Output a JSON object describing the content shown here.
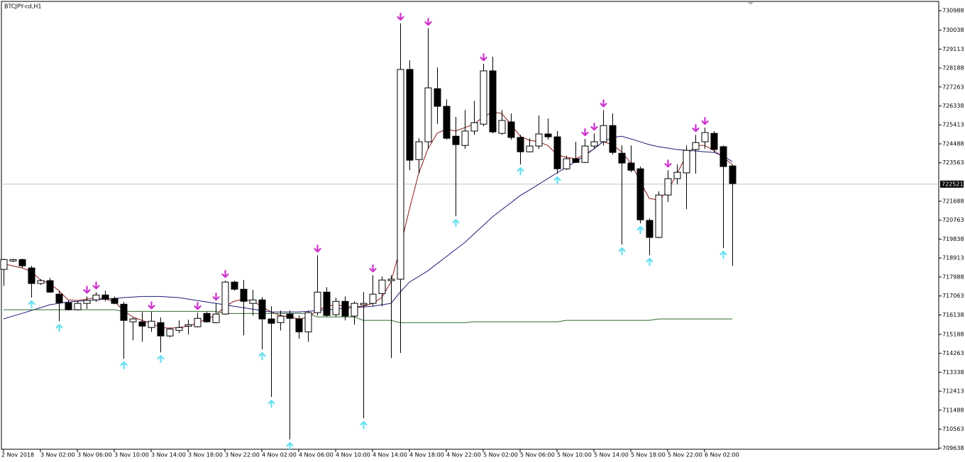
{
  "chart_data": {
    "type": "candlestick",
    "title": "BTCJPY-cd,H1",
    "categories": [
      "2 Nov 2018",
      null,
      null,
      null,
      "3 Nov 02:00",
      null,
      null,
      null,
      "3 Nov 06:00",
      null,
      null,
      null,
      "3 Nov 10:00",
      null,
      null,
      null,
      "3 Nov 14:00",
      null,
      null,
      null,
      "3 Nov 18:00",
      null,
      null,
      null,
      "3 Nov 22:00",
      null,
      null,
      null,
      "4 Nov 02:00",
      null,
      null,
      null,
      "4 Nov 06:00",
      null,
      null,
      null,
      "4 Nov 10:00",
      null,
      null,
      null,
      "4 Nov 14:00",
      null,
      null,
      null,
      "4 Nov 18:00",
      null,
      null,
      null,
      "4 Nov 22:00",
      null,
      null,
      null,
      "5 Nov 02:00",
      null,
      null,
      null,
      "5 Nov 06:00",
      null,
      null,
      null,
      "5 Nov 10:00",
      null,
      null,
      null,
      "5 Nov 14:00",
      null,
      null,
      null,
      "5 Nov 18:00",
      null,
      null,
      null,
      "5 Nov 22:00",
      null,
      null,
      null,
      "6 Nov 02:00",
      null,
      null,
      null
    ],
    "candles": [
      [
        718360,
        718880,
        717560,
        718840
      ],
      [
        718770,
        718880,
        718710,
        718840
      ],
      [
        718840,
        718880,
        718430,
        718530
      ],
      [
        718430,
        718530,
        716980,
        717670
      ],
      [
        717670,
        717880,
        717600,
        717810
      ],
      [
        717810,
        717940,
        717220,
        717250
      ],
      [
        717150,
        717320,
        715830,
        716730
      ],
      [
        716730,
        716840,
        716350,
        716390
      ],
      [
        716390,
        716800,
        716350,
        716700
      ],
      [
        716700,
        717040,
        716420,
        716840
      ],
      [
        716870,
        717250,
        716770,
        717110
      ],
      [
        717110,
        717320,
        716800,
        716910
      ],
      [
        716940,
        717040,
        716660,
        716700
      ],
      [
        716660,
        716770,
        714000,
        715870
      ],
      [
        715800,
        716010,
        714900,
        715940
      ],
      [
        715800,
        716280,
        714830,
        715590
      ],
      [
        715520,
        716280,
        715310,
        715830
      ],
      [
        715760,
        716010,
        714310,
        715110
      ],
      [
        715110,
        715520,
        715040,
        715450
      ],
      [
        715380,
        715870,
        715250,
        715520
      ],
      [
        715590,
        715900,
        715180,
        715660
      ],
      [
        715560,
        716250,
        715520,
        715970
      ],
      [
        716210,
        716280,
        715760,
        715800
      ],
      [
        715760,
        716700,
        715730,
        716180
      ],
      [
        716180,
        717810,
        716150,
        717740
      ],
      [
        717740,
        717810,
        717320,
        717390
      ],
      [
        717390,
        717840,
        715140,
        716800
      ],
      [
        716700,
        717360,
        716110,
        716870
      ],
      [
        716870,
        717010,
        714450,
        715940
      ],
      [
        715940,
        716560,
        712130,
        715730
      ],
      [
        715760,
        716350,
        715380,
        716080
      ],
      [
        716180,
        716350,
        710060,
        715970
      ],
      [
        715940,
        716110,
        714970,
        715310
      ],
      [
        715310,
        716350,
        714830,
        716250
      ],
      [
        716250,
        719050,
        716110,
        717250
      ],
      [
        717250,
        717490,
        716040,
        716110
      ],
      [
        716150,
        716980,
        716040,
        716800
      ],
      [
        716800,
        717040,
        715870,
        716080
      ],
      [
        716080,
        716800,
        715660,
        716700
      ],
      [
        716630,
        717250,
        711090,
        716700
      ],
      [
        716700,
        718080,
        716560,
        717150
      ],
      [
        717180,
        718010,
        716560,
        717840
      ],
      [
        717810,
        718080,
        714030,
        717880
      ],
      [
        717880,
        730370,
        714280,
        728120
      ],
      [
        728120,
        728570,
        723200,
        723690
      ],
      [
        723720,
        724760,
        723030,
        724590
      ],
      [
        724590,
        730120,
        724240,
        727220
      ],
      [
        727180,
        728220,
        725450,
        726320
      ],
      [
        726320,
        726660,
        724690,
        724760
      ],
      [
        724860,
        725800,
        720950,
        724450
      ],
      [
        724410,
        726140,
        724240,
        725110
      ],
      [
        725110,
        726590,
        724930,
        725520
      ],
      [
        725450,
        728390,
        725350,
        728050
      ],
      [
        728050,
        728740,
        725000,
        725070
      ],
      [
        725000,
        726140,
        724930,
        725630
      ],
      [
        725560,
        725970,
        724690,
        724800
      ],
      [
        724800,
        724930,
        723480,
        724100
      ],
      [
        724100,
        724760,
        724070,
        724380
      ],
      [
        724380,
        725870,
        724240,
        724970
      ],
      [
        724970,
        725730,
        724690,
        724830
      ],
      [
        724830,
        725110,
        723030,
        723270
      ],
      [
        723270,
        723900,
        723200,
        723760
      ],
      [
        723760,
        724590,
        723550,
        723580
      ],
      [
        723580,
        724730,
        723550,
        724380
      ],
      [
        724380,
        725000,
        724240,
        724590
      ],
      [
        724590,
        726140,
        724410,
        725380
      ],
      [
        725380,
        725970,
        723960,
        724070
      ],
      [
        724030,
        724410,
        719570,
        723550
      ],
      [
        723550,
        724410,
        723100,
        723200
      ],
      [
        723270,
        723380,
        720610,
        720780
      ],
      [
        720750,
        720850,
        719050,
        719920
      ],
      [
        719920,
        722170,
        719880,
        721990
      ],
      [
        721990,
        723200,
        721650,
        722790
      ],
      [
        722790,
        723480,
        722510,
        723100
      ],
      [
        723070,
        724410,
        721300,
        724170
      ],
      [
        724210,
        724930,
        723030,
        724550
      ],
      [
        724590,
        725280,
        724240,
        725040
      ],
      [
        725000,
        725110,
        724070,
        724210
      ],
      [
        724350,
        724410,
        719400,
        723380
      ],
      [
        723410,
        723480,
        718530,
        722550
      ]
    ],
    "lines": [
      {
        "color": "#8b1a1a",
        "values": [
          718640,
          718530,
          718430,
          718260,
          717840,
          717670,
          717320,
          716870,
          716840,
          716910,
          716980,
          716910,
          716800,
          716350,
          716040,
          715870,
          715730,
          715520,
          715490,
          715520,
          715590,
          715730,
          715940,
          716110,
          716560,
          716800,
          716910,
          716800,
          716560,
          716280,
          716110,
          716040,
          715940,
          716010,
          716350,
          716560,
          716630,
          716560,
          716530,
          716560,
          716700,
          716980,
          717740,
          719400,
          721300,
          723030,
          724240,
          725000,
          725210,
          725110,
          725280,
          725450,
          725800,
          726040,
          725970,
          725450,
          724860,
          724660,
          724590,
          724410,
          723960,
          723830,
          723760,
          723960,
          724240,
          724590,
          724450,
          724100,
          723550,
          722680,
          721820,
          721750,
          722170,
          723030,
          723900,
          724410,
          724410,
          724170,
          723830,
          723480
        ]
      },
      {
        "color": "#1c1c7a",
        "values": [
          715940,
          716080,
          716210,
          716350,
          716490,
          716630,
          716700,
          716770,
          716800,
          716840,
          716870,
          716910,
          716940,
          716980,
          717010,
          717040,
          717040,
          717040,
          717010,
          716980,
          716910,
          716840,
          716770,
          716700,
          716630,
          716560,
          716490,
          716420,
          716350,
          716280,
          716280,
          716280,
          716280,
          716310,
          716350,
          716390,
          716420,
          716460,
          716490,
          716530,
          716560,
          716630,
          716700,
          717250,
          717740,
          718010,
          718290,
          718640,
          718980,
          719330,
          719670,
          720090,
          720500,
          720920,
          721270,
          721610,
          721960,
          722230,
          722510,
          722790,
          723070,
          723340,
          723620,
          723900,
          724240,
          724590,
          724800,
          724860,
          724730,
          724590,
          724450,
          724350,
          724280,
          724210,
          724170,
          724140,
          724100,
          724070,
          723900,
          723620
        ]
      },
      {
        "color": "#2e6b2e",
        "values": [
          716390,
          716390,
          716390,
          716390,
          716390,
          716390,
          716390,
          716390,
          716390,
          716390,
          716390,
          716390,
          716390,
          716310,
          716310,
          716310,
          716310,
          716310,
          716310,
          716310,
          716310,
          716310,
          716310,
          716310,
          716210,
          716210,
          716210,
          716210,
          716210,
          716210,
          716210,
          716210,
          716210,
          716210,
          716040,
          716040,
          716040,
          716040,
          716040,
          715870,
          715870,
          715870,
          715870,
          715760,
          715760,
          715760,
          715760,
          715760,
          715760,
          715760,
          715760,
          715800,
          715800,
          715800,
          715800,
          715800,
          715800,
          715800,
          715800,
          715800,
          715800,
          715870,
          715870,
          715870,
          715870,
          715870,
          715870,
          715870,
          715870,
          715870,
          715870,
          715940,
          715940,
          715940,
          715940,
          715940,
          715940,
          715940,
          715940,
          715940
        ]
      }
    ],
    "down_arrows": [
      9,
      10,
      16,
      21,
      23,
      24,
      34,
      40,
      43,
      46,
      52,
      63,
      64,
      65,
      72,
      75,
      76
    ],
    "up_arrows": [
      3,
      6,
      13,
      17,
      28,
      29,
      31,
      39,
      49,
      56,
      60,
      67,
      69,
      70,
      78
    ],
    "down_color": "#cc33cc",
    "up_color": "#66e0f0",
    "current_price": 722521,
    "ylim": [
      709580,
      731440
    ],
    "yticks": [
      730988,
      730038,
      729113,
      728188,
      727263,
      726338,
      725413,
      724488,
      723563,
      721688,
      720763,
      719838,
      718913,
      717988,
      717063,
      716138,
      715188,
      714263,
      713338,
      712413,
      711488,
      710563,
      709638
    ]
  }
}
